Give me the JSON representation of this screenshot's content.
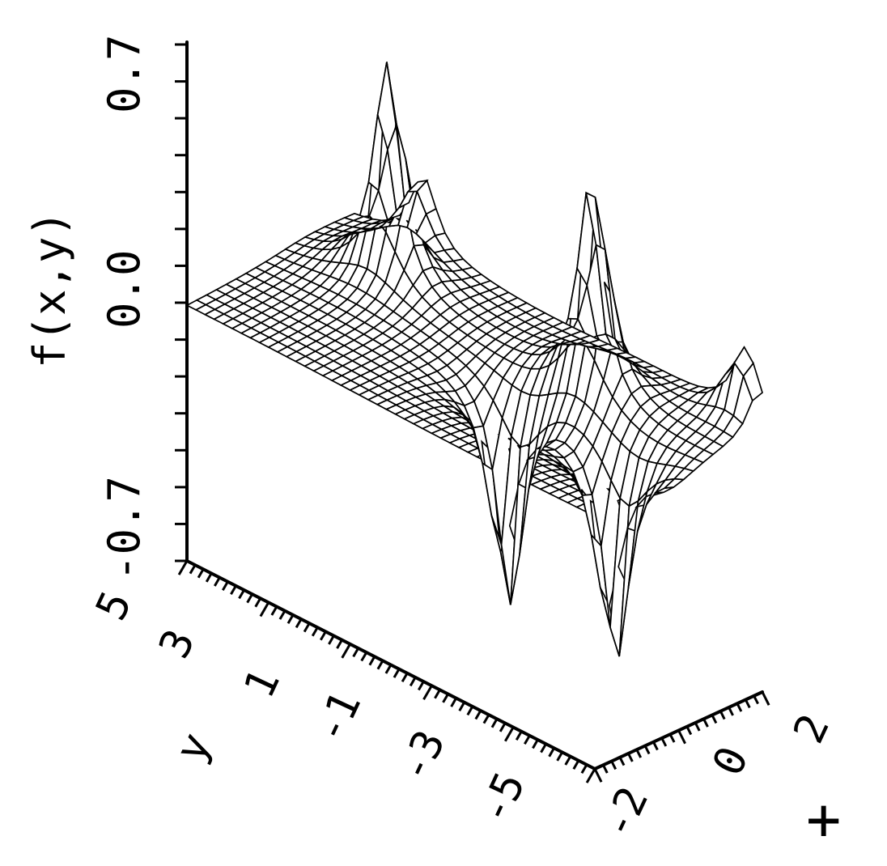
{
  "chart_data": {
    "type": "surface",
    "zlabel": "f(x,y)",
    "ylabel": "y",
    "xlabel": "+",
    "z_ticks": [
      "-0.7",
      "0.0",
      "0.7"
    ],
    "y_ticks": [
      "5",
      "3",
      "1",
      "-1",
      "-3",
      "-5"
    ],
    "x_ticks": [
      "-2",
      "0",
      "2"
    ],
    "zlim": [
      -0.7,
      0.7
    ],
    "ylim": [
      -5,
      5
    ],
    "xlim": [
      -2,
      2
    ],
    "grid_x": 17,
    "grid_y": 45,
    "peaks": [
      {
        "x": 0.9,
        "y": 3.0,
        "z": 0.7
      },
      {
        "x": 0.9,
        "y": -2.0,
        "z": 0.7
      },
      {
        "x": -0.2,
        "y": -1.0,
        "z": -0.7
      },
      {
        "x": -0.2,
        "y": -3.6,
        "z": -0.7
      },
      {
        "x": 1.9,
        "y": 3.3,
        "z": 0.25
      },
      {
        "x": 1.9,
        "y": -4.6,
        "z": 0.25
      }
    ]
  }
}
